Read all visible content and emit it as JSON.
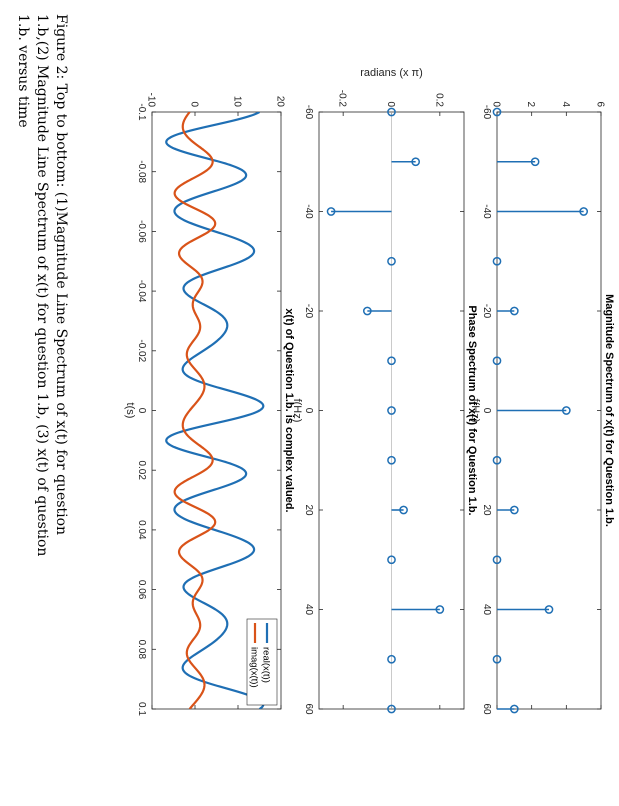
{
  "colors": {
    "blue": "#1f6fb4",
    "orange": "#d95319",
    "axis": "#262626"
  },
  "caption": {
    "line1": "Figure 2:  Top to bottom:  (1)Magnitude Line Spectrum of x(t) for question",
    "line2": "1.b,(2) Magnitude Line Spectrum of x(t) for question 1.b, (3) x(t) of question",
    "line3": "1.b. versus time"
  },
  "chart_data": [
    {
      "type": "stem",
      "title": "Magnitude Spectrum of x(t) for Question 1.b.",
      "xlabel": "f(Hz)",
      "ylabel": "",
      "xlim": [
        -60,
        60
      ],
      "ylim": [
        0,
        6
      ],
      "xticks": [
        "-60",
        "-40",
        "-20",
        "0",
        "20",
        "40",
        "60"
      ],
      "yticks": [
        "0",
        "2",
        "4",
        "6"
      ],
      "x": [
        -60,
        -50,
        -40,
        -30,
        -20,
        -10,
        0,
        10,
        20,
        30,
        40,
        50,
        60
      ],
      "values": [
        0,
        2.2,
        5,
        0,
        1,
        0,
        4,
        0,
        1,
        0,
        3,
        0,
        1
      ]
    },
    {
      "type": "stem",
      "title": "Phase Spectrum of x(t) for Question 1.b.",
      "xlabel": "f(Hz)",
      "ylabel": "radians (x π)",
      "xlim": [
        -60,
        60
      ],
      "ylim": [
        -0.3,
        0.3
      ],
      "xticks": [
        "-60",
        "-40",
        "-20",
        "0",
        "20",
        "40",
        "60"
      ],
      "yticks": [
        "-0.2",
        "0",
        "0.2"
      ],
      "x": [
        -60,
        -50,
        -40,
        -30,
        -20,
        -10,
        0,
        10,
        20,
        30,
        40,
        50,
        60
      ],
      "values": [
        0,
        0.1,
        -0.25,
        0,
        -0.1,
        0,
        0,
        0,
        0.05,
        0,
        0.2,
        0,
        0
      ]
    },
    {
      "type": "line",
      "title": "x(t) of Question 1.b. is complex valued.",
      "xlabel": "t(s)",
      "ylabel": "",
      "xlim": [
        -0.1,
        0.1
      ],
      "ylim": [
        -10,
        20
      ],
      "xticks": [
        "-0.1",
        "-0.08",
        "-0.06",
        "-0.04",
        "-0.02",
        "0",
        "0.02",
        "0.04",
        "0.06",
        "0.08",
        "0.1"
      ],
      "yticks": [
        "-10",
        "0",
        "10",
        "20"
      ],
      "legend": {
        "position": "top-right",
        "entries": [
          "real(x(t))",
          "imag(x(t))"
        ]
      },
      "series": [
        {
          "name": "real(x(t))",
          "color": "#1f6fb4",
          "freqs": [
            -50,
            -40,
            -20,
            0,
            20,
            40,
            60
          ],
          "amps": [
            2.2,
            5,
            1,
            4,
            1,
            3,
            1
          ],
          "phases": [
            0.1,
            -0.25,
            -0.1,
            0,
            0.05,
            0.2,
            0
          ]
        },
        {
          "name": "imag(x(t))",
          "color": "#d95319",
          "freqs": [
            -50,
            -40,
            -20,
            0,
            20,
            40,
            60
          ],
          "amps": [
            2.2,
            5,
            1,
            4,
            1,
            3,
            1
          ],
          "phases": [
            0.1,
            -0.25,
            -0.1,
            0,
            0.05,
            0.2,
            0
          ]
        }
      ]
    }
  ]
}
